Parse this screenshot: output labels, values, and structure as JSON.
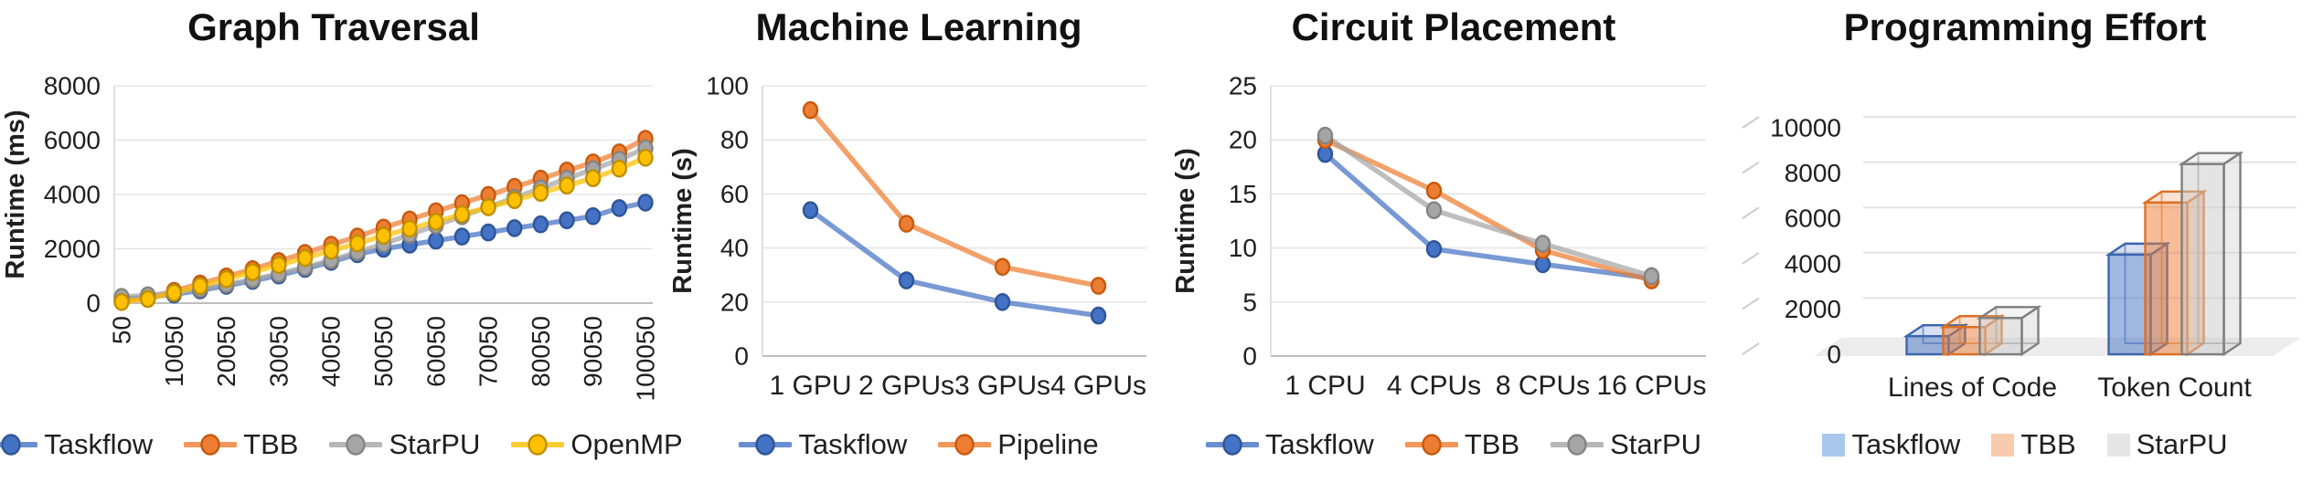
{
  "page": {
    "background": "#ffffff"
  },
  "chart_data": [
    {
      "id": "graph-traversal",
      "title": "Graph Traversal",
      "type": "line",
      "ylabel": "Runtime (ms)",
      "xlabel": "",
      "ylim": [
        0,
        8000
      ],
      "y_ticks": [
        0,
        2000,
        4000,
        6000,
        8000
      ],
      "grid": true,
      "legend_position": "bottom",
      "categories": [
        50,
        5050,
        10050,
        15050,
        20050,
        25050,
        30050,
        35050,
        40050,
        45050,
        50050,
        55050,
        60050,
        65050,
        70050,
        75050,
        80050,
        85050,
        90050,
        95050,
        100050
      ],
      "x_tick_labels_shown": [
        "50",
        "10050",
        "20050",
        "30050",
        "40050",
        "50050",
        "60050",
        "70050",
        "80050",
        "90050",
        "100050"
      ],
      "series": [
        {
          "name": "Taskflow",
          "color": "#4472C4",
          "edge": "#2F5597",
          "values": [
            150,
            220,
            320,
            470,
            640,
            820,
            1020,
            1260,
            1520,
            1800,
            2000,
            2150,
            2300,
            2450,
            2600,
            2760,
            2900,
            3050,
            3200,
            3500,
            3700
          ]
        },
        {
          "name": "TBB",
          "color": "#ED7D31",
          "edge": "#C55A11",
          "values": [
            60,
            200,
            450,
            720,
            980,
            1250,
            1550,
            1850,
            2150,
            2450,
            2780,
            3080,
            3380,
            3680,
            3980,
            4280,
            4580,
            4880,
            5180,
            5550,
            6050
          ]
        },
        {
          "name": "StarPU",
          "color": "#A5A5A5",
          "edge": "#848484",
          "values": [
            230,
            290,
            380,
            520,
            690,
            870,
            1080,
            1320,
            1580,
            1880,
            2180,
            2520,
            2860,
            3200,
            3540,
            3880,
            4230,
            4580,
            4930,
            5280,
            5700
          ]
        },
        {
          "name": "OpenMP",
          "color": "#FFC000",
          "edge": "#BF9000",
          "values": [
            40,
            150,
            380,
            630,
            880,
            1140,
            1400,
            1660,
            1930,
            2200,
            2480,
            2740,
            3000,
            3270,
            3530,
            3790,
            4060,
            4330,
            4600,
            4950,
            5350
          ]
        }
      ]
    },
    {
      "id": "machine-learning",
      "title": "Machine Learning",
      "type": "line",
      "ylabel": "Runtime (s)",
      "xlabel": "",
      "ylim": [
        0,
        100
      ],
      "y_ticks": [
        0,
        20,
        40,
        60,
        80,
        100
      ],
      "grid": true,
      "legend_position": "bottom",
      "categories": [
        "1 GPU",
        "2 GPUs",
        "3 GPUs",
        "4 GPUs"
      ],
      "series": [
        {
          "name": "Taskflow",
          "color": "#4472C4",
          "edge": "#2F5597",
          "values": [
            54,
            28,
            20,
            15
          ]
        },
        {
          "name": "Pipeline",
          "color": "#ED7D31",
          "edge": "#C55A11",
          "values": [
            91,
            49,
            33,
            26
          ]
        }
      ]
    },
    {
      "id": "circuit-placement",
      "title": "Circuit Placement",
      "type": "line",
      "ylabel": "Runtime (s)",
      "xlabel": "",
      "ylim": [
        0,
        25
      ],
      "y_ticks": [
        0,
        5,
        10,
        15,
        20,
        25
      ],
      "grid": true,
      "legend_position": "bottom",
      "categories": [
        "1 CPU",
        "4 CPUs",
        "8 CPUs",
        "16 CPUs"
      ],
      "series": [
        {
          "name": "Taskflow",
          "color": "#4472C4",
          "edge": "#2F5597",
          "values": [
            18.7,
            9.9,
            8.5,
            7.2
          ]
        },
        {
          "name": "TBB",
          "color": "#ED7D31",
          "edge": "#C55A11",
          "values": [
            20.0,
            15.3,
            9.8,
            7.0
          ]
        },
        {
          "name": "StarPU",
          "color": "#A5A5A5",
          "edge": "#848484",
          "values": [
            20.4,
            13.5,
            10.4,
            7.4
          ]
        }
      ]
    },
    {
      "id": "programming-effort",
      "title": "Programming Effort",
      "type": "bar3d",
      "ylabel": "",
      "xlabel": "",
      "ylim": [
        0,
        10000
      ],
      "y_ticks": [
        0,
        2000,
        4000,
        6000,
        8000,
        10000
      ],
      "grid": true,
      "legend_position": "bottom",
      "categories": [
        "Lines of Code",
        "Token Count"
      ],
      "series": [
        {
          "name": "Taskflow",
          "color": "#4472C4",
          "edge": "#3B66B0",
          "fill": "#4472C4",
          "legend_fill": "#A9C7EC",
          "values": [
            800,
            4400
          ]
        },
        {
          "name": "TBB",
          "color": "#ED7D31",
          "edge": "#DD7027",
          "fill": "#ED7D31",
          "legend_fill": "#F8CBAD",
          "values": [
            1200,
            6700
          ]
        },
        {
          "name": "StarPU",
          "color": "#A5A5A5",
          "edge": "#7F7F7F",
          "fill": "#C9C9C9",
          "legend_fill": "#E7E6E6",
          "values": [
            1600,
            8400
          ]
        }
      ]
    }
  ]
}
